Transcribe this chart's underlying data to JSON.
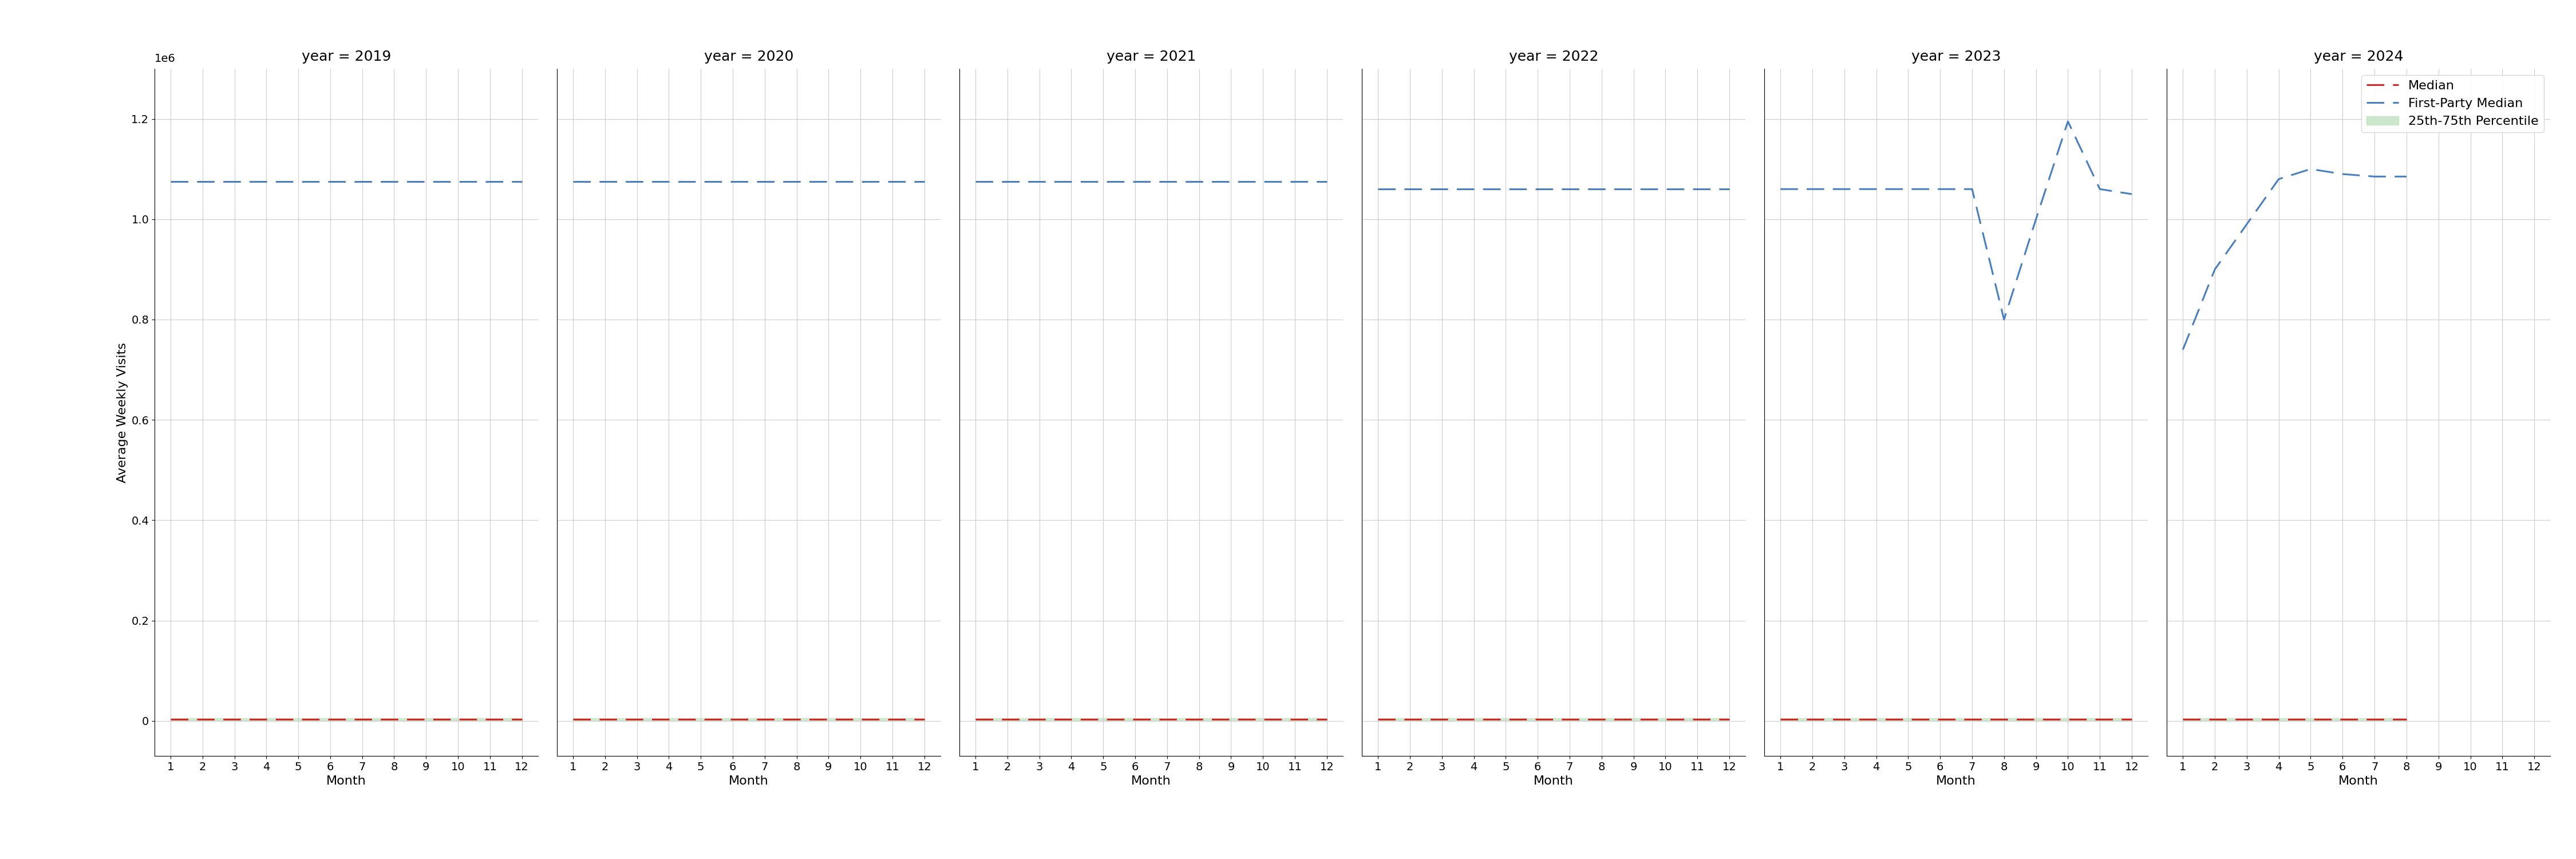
{
  "years": [
    2019,
    2020,
    2021,
    2022,
    2023,
    2024
  ],
  "months_full": [
    1,
    2,
    3,
    4,
    5,
    6,
    7,
    8,
    9,
    10,
    11,
    12
  ],
  "median_color": "#d62728",
  "fp_color": "#4a7fbf",
  "percentile_color": "#b8ddb8",
  "ylabel": "Average Weekly Visits",
  "xlabel": "Month",
  "ylim": [
    -70000,
    1300000
  ],
  "yticks": [
    0,
    200000,
    400000,
    600000,
    800000,
    1000000,
    1200000
  ],
  "fp_median_2019": [
    1075000,
    1075000,
    1075000,
    1075000,
    1075000,
    1075000,
    1075000,
    1075000,
    1075000,
    1075000,
    1075000,
    1075000
  ],
  "fp_median_2020": [
    1075000,
    1075000,
    1075000,
    1075000,
    1075000,
    1075000,
    1075000,
    1075000,
    1075000,
    1075000,
    1075000,
    1075000
  ],
  "fp_median_2021": [
    1075000,
    1075000,
    1075000,
    1075000,
    1075000,
    1075000,
    1075000,
    1075000,
    1075000,
    1075000,
    1075000,
    1075000
  ],
  "fp_median_2022": [
    1060000,
    1060000,
    1060000,
    1060000,
    1060000,
    1060000,
    1060000,
    1060000,
    1060000,
    1060000,
    1060000,
    1060000
  ],
  "fp_median_2023_months": [
    1,
    2,
    3,
    4,
    5,
    6,
    7,
    8,
    9,
    10,
    11,
    12
  ],
  "fp_median_2023": [
    1060000,
    1060000,
    1060000,
    1060000,
    1060000,
    1060000,
    1060000,
    800000,
    1000000,
    1195000,
    1060000,
    1050000
  ],
  "fp_median_2024_months": [
    1,
    2,
    3,
    4,
    5,
    6,
    7,
    8
  ],
  "fp_median_2024": [
    740000,
    900000,
    990000,
    1080000,
    1100000,
    1090000,
    1085000,
    1085000
  ],
  "median_2019": [
    3000,
    3000,
    3000,
    3000,
    3000,
    3000,
    3000,
    3000,
    3000,
    3000,
    3000,
    3000
  ],
  "median_2020": [
    3000,
    3000,
    3000,
    3000,
    3000,
    3000,
    3000,
    3000,
    3000,
    3000,
    3000,
    3000
  ],
  "median_2021": [
    3000,
    3000,
    3000,
    3000,
    3000,
    3000,
    3000,
    3000,
    3000,
    3000,
    3000,
    3000
  ],
  "median_2022": [
    3000,
    3000,
    3000,
    3000,
    3000,
    3000,
    3000,
    3000,
    3000,
    3000,
    3000,
    3000
  ],
  "median_2023": [
    3000,
    3000,
    3000,
    3000,
    3000,
    3000,
    3000,
    3000,
    3000,
    3000,
    3000,
    3000
  ],
  "median_2024": [
    3000,
    3000,
    3000,
    3000,
    3000,
    3000,
    3000,
    3000
  ],
  "legend_labels": [
    "Median",
    "First-Party Median",
    "25th-75th Percentile"
  ],
  "title_fontsize": 18,
  "label_fontsize": 16,
  "tick_fontsize": 14,
  "legend_fontsize": 16
}
